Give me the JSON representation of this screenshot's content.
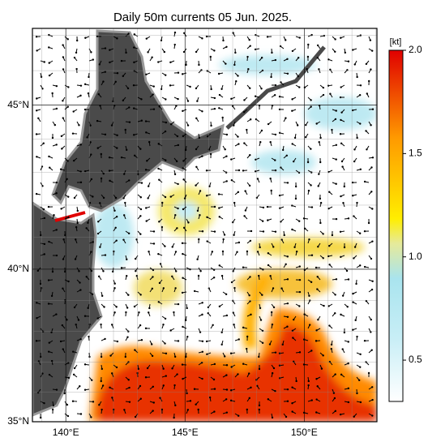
{
  "title": "Daily 50m currents 05 Jun. 2025.",
  "map": {
    "lonlim": [
      138.6,
      153.05
    ],
    "latlim": [
      35,
      47.2
    ],
    "lat_ticks": [
      {
        "value": 35,
        "label": "35°N"
      },
      {
        "value": 40,
        "label": "40°N"
      },
      {
        "value": 45,
        "label": "45°N"
      }
    ],
    "lon_ticks": [
      {
        "value": 140,
        "label": "140°E"
      },
      {
        "value": 145,
        "label": "145°E"
      },
      {
        "value": 150,
        "label": "150°E"
      }
    ]
  },
  "colorbar": {
    "unit": "[kt]",
    "lim": [
      0.3,
      2.0
    ],
    "ticks": [
      {
        "value": 0.5,
        "label": "0.5"
      },
      {
        "value": 1.0,
        "label": "1.0"
      },
      {
        "value": 1.5,
        "label": "1.5"
      },
      {
        "value": 2.0,
        "label": "2.0"
      }
    ]
  }
}
